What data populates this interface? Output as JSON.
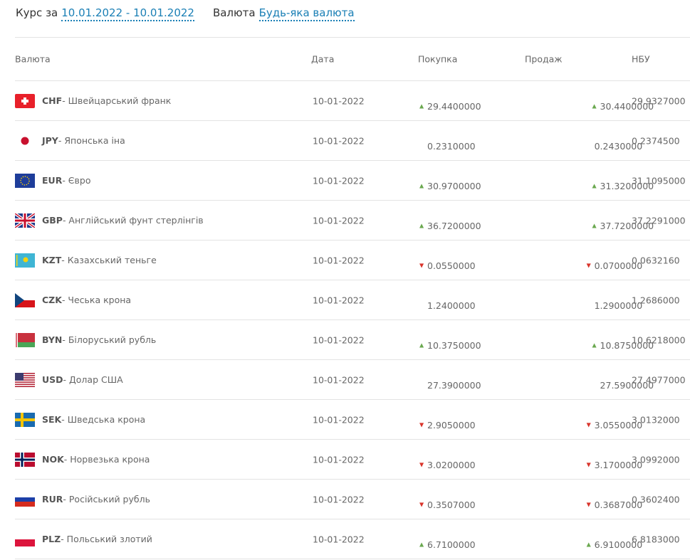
{
  "filters": {
    "period_label": "Курс за",
    "period_value": "10.01.2022 - 10.01.2022",
    "currency_label": "Валюта",
    "currency_value": "Будь-яка валюта"
  },
  "headers": [
    "Валюта",
    "Дата",
    "Покупка",
    "Продаж",
    "НБУ"
  ],
  "rows": [
    {
      "code": "CHF",
      "name": " - Швейцарський франк",
      "flag": "switzerland-flag",
      "date": "10-01-2022",
      "buy": "29.4400000",
      "buy_trend": "up",
      "sell": "30.4400000",
      "sell_trend": "up",
      "nbu": "29.9327000"
    },
    {
      "code": "JPY",
      "name": " - Японська іна",
      "flag": "japan-flag",
      "date": "10-01-2022",
      "buy": "0.2310000",
      "buy_trend": "",
      "sell": "0.2430000",
      "sell_trend": "",
      "nbu": "0.2374500"
    },
    {
      "code": "EUR",
      "name": " - Євро",
      "flag": "eu-flag",
      "date": "10-01-2022",
      "buy": "30.9700000",
      "buy_trend": "up",
      "sell": "31.3200000",
      "sell_trend": "up",
      "nbu": "31.1095000"
    },
    {
      "code": "GBP",
      "name": " - Англійський фунт стерлінгів",
      "flag": "uk-flag",
      "date": "10-01-2022",
      "buy": "36.7200000",
      "buy_trend": "up",
      "sell": "37.7200000",
      "sell_trend": "up",
      "nbu": "37.2291000"
    },
    {
      "code": "KZT",
      "name": " - Казахський теньге",
      "flag": "kazakhstan-flag",
      "date": "10-01-2022",
      "buy": "0.0550000",
      "buy_trend": "down",
      "sell": "0.0700000",
      "sell_trend": "down",
      "nbu": "0.0632160"
    },
    {
      "code": "CZK",
      "name": " - Чеська крона",
      "flag": "czech-flag",
      "date": "10-01-2022",
      "buy": "1.2400000",
      "buy_trend": "",
      "sell": "1.2900000",
      "sell_trend": "",
      "nbu": "1.2686000"
    },
    {
      "code": "BYN",
      "name": " - Білоруський рубль",
      "flag": "belarus-flag",
      "date": "10-01-2022",
      "buy": "10.3750000",
      "buy_trend": "up",
      "sell": "10.8750000",
      "sell_trend": "up",
      "nbu": "10.6218000"
    },
    {
      "code": "USD",
      "name": " - Долар США",
      "flag": "usa-flag",
      "date": "10-01-2022",
      "buy": "27.3900000",
      "buy_trend": "",
      "sell": "27.5900000",
      "sell_trend": "",
      "nbu": "27.4977000"
    },
    {
      "code": "SEK",
      "name": " - Шведська крона",
      "flag": "sweden-flag",
      "date": "10-01-2022",
      "buy": "2.9050000",
      "buy_trend": "down",
      "sell": "3.0550000",
      "sell_trend": "down",
      "nbu": "3.0132000"
    },
    {
      "code": "NOK",
      "name": " - Норвезька крона",
      "flag": "norway-flag",
      "date": "10-01-2022",
      "buy": "3.0200000",
      "buy_trend": "down",
      "sell": "3.1700000",
      "sell_trend": "down",
      "nbu": "3.0992000"
    },
    {
      "code": "RUR",
      "name": " - Російський рубль",
      "flag": "russia-flag",
      "date": "10-01-2022",
      "buy": "0.3507000",
      "buy_trend": "down",
      "sell": "0.3687000",
      "sell_trend": "down",
      "nbu": "0.3602400"
    },
    {
      "code": "PLZ",
      "name": " - Польський злотий",
      "flag": "poland-flag",
      "date": "10-01-2022",
      "buy": "6.7100000",
      "buy_trend": "up",
      "sell": "6.9100000",
      "sell_trend": "up",
      "nbu": "6.8183000"
    }
  ],
  "colors": {
    "link": "#1a7fb5",
    "up": "#6aa84f",
    "down": "#d9342b"
  }
}
